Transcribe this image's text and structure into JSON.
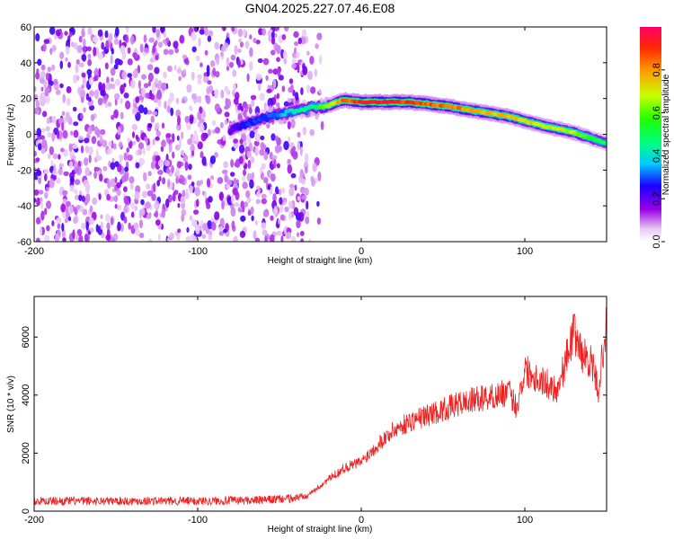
{
  "title": "GN04.2025.227.07.46.E08",
  "chart_data": [
    {
      "type": "heatmap",
      "panel": "spectrogram",
      "xlabel": "Height of straight line (km)",
      "ylabel": "Frequency (Hz)",
      "xlim": [
        -200,
        150
      ],
      "ylim": [
        -60,
        60
      ],
      "x_ticks": [
        "-200",
        "-100",
        "0",
        "100"
      ],
      "y_ticks": [
        "60",
        "40",
        "20",
        "0",
        "-20",
        "-40",
        "-60"
      ],
      "noise_region_x": [
        -200,
        -30
      ],
      "signal_track": {
        "x": [
          -80,
          -70,
          -60,
          -50,
          -40,
          -30,
          -20,
          -15,
          -10,
          0,
          20,
          30,
          50,
          70,
          90,
          110,
          130,
          150
        ],
        "frequency": [
          2,
          6,
          9,
          11,
          13,
          15,
          16,
          18,
          19,
          18,
          18,
          18,
          16,
          13,
          10,
          5,
          1,
          -5
        ],
        "amplitude": [
          0.2,
          0.3,
          0.3,
          0.35,
          0.45,
          0.5,
          0.7,
          0.8,
          0.9,
          1.0,
          1.0,
          0.95,
          0.9,
          0.85,
          0.8,
          0.75,
          0.7,
          0.5
        ]
      },
      "colorbar": {
        "label": "Normalized spectral amplitude",
        "range": [
          0.0,
          1.0
        ],
        "ticks": [
          "0.0",
          "0.2",
          "0.4",
          "0.6",
          "0.8"
        ]
      }
    },
    {
      "type": "line",
      "panel": "snr",
      "xlabel": "Height of straight line (km)",
      "ylabel": "SNR (10 * v/v)",
      "xlim": [
        -200,
        150
      ],
      "ylim": [
        0,
        7400
      ],
      "x_ticks": [
        "-200",
        "-100",
        "0",
        "100"
      ],
      "y_ticks": [
        "0",
        "2000",
        "4000",
        "6000"
      ],
      "color": "#ee2222",
      "series": [
        {
          "x": [
            -200,
            -150,
            -100,
            -60,
            -40,
            -30,
            -20,
            -10,
            0,
            10,
            20,
            30,
            40,
            50,
            60,
            70,
            80,
            90,
            95,
            100,
            110,
            120,
            125,
            130,
            135,
            140,
            145,
            148,
            150
          ],
          "values": [
            350,
            350,
            350,
            380,
            450,
            650,
            1100,
            1500,
            1700,
            2300,
            2800,
            3100,
            3300,
            3500,
            3700,
            3850,
            3950,
            4100,
            3600,
            4900,
            4500,
            4200,
            5200,
            6200,
            5400,
            5200,
            4200,
            5600,
            6400
          ]
        }
      ]
    }
  ]
}
